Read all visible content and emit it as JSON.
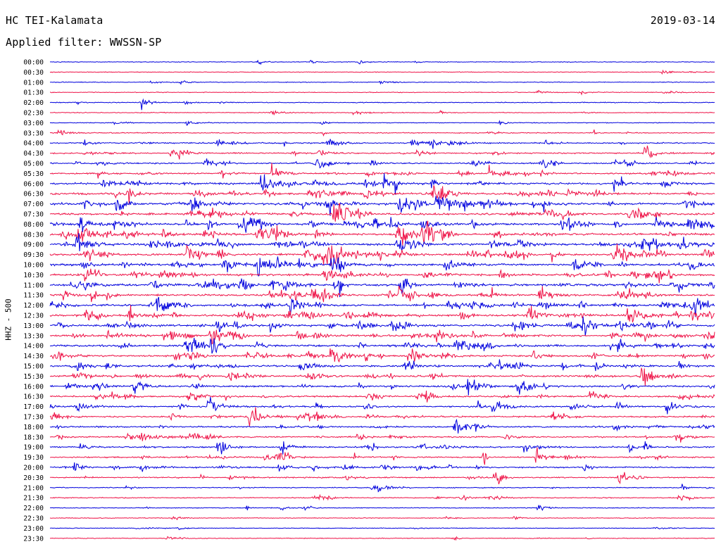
{
  "header": {
    "station": "HC TEI-Kalamata",
    "date": "2019-03-14",
    "filter_label": "Applied filter: WWSSN-SP"
  },
  "chart_data": {
    "type": "line",
    "subtype": "helicorder (drum seismogram)",
    "ylabel": "HHZ - 500",
    "trace_colors": [
      "#0000dd",
      "#ee1146"
    ],
    "row_interval_minutes": 30,
    "rows": [
      {
        "label": "00:00",
        "activity": 0.05
      },
      {
        "label": "00:30",
        "activity": 0.05
      },
      {
        "label": "01:00",
        "activity": 0.05
      },
      {
        "label": "01:30",
        "activity": 0.08
      },
      {
        "label": "02:00",
        "activity": 0.15
      },
      {
        "label": "02:30",
        "activity": 0.12
      },
      {
        "label": "03:00",
        "activity": 0.12
      },
      {
        "label": "03:30",
        "activity": 0.2
      },
      {
        "label": "04:00",
        "activity": 0.4
      },
      {
        "label": "04:30",
        "activity": 0.45
      },
      {
        "label": "05:00",
        "activity": 0.45
      },
      {
        "label": "05:30",
        "activity": 0.55
      },
      {
        "label": "06:00",
        "activity": 0.75
      },
      {
        "label": "06:30",
        "activity": 0.85
      },
      {
        "label": "07:00",
        "activity": 0.9
      },
      {
        "label": "07:30",
        "activity": 0.85
      },
      {
        "label": "08:00",
        "activity": 0.9
      },
      {
        "label": "08:30",
        "activity": 0.9
      },
      {
        "label": "09:00",
        "activity": 0.95
      },
      {
        "label": "09:30",
        "activity": 0.95
      },
      {
        "label": "10:00",
        "activity": 0.9
      },
      {
        "label": "10:30",
        "activity": 0.85
      },
      {
        "label": "11:00",
        "activity": 0.9
      },
      {
        "label": "11:30",
        "activity": 0.85
      },
      {
        "label": "12:00",
        "activity": 0.9
      },
      {
        "label": "12:30",
        "activity": 0.85
      },
      {
        "label": "13:00",
        "activity": 0.85
      },
      {
        "label": "13:30",
        "activity": 0.8
      },
      {
        "label": "14:00",
        "activity": 0.8
      },
      {
        "label": "14:30",
        "activity": 0.75
      },
      {
        "label": "15:00",
        "activity": 0.75
      },
      {
        "label": "15:30",
        "activity": 0.7
      },
      {
        "label": "16:00",
        "activity": 0.7
      },
      {
        "label": "16:30",
        "activity": 0.6
      },
      {
        "label": "17:00",
        "activity": 0.6
      },
      {
        "label": "17:30",
        "activity": 0.55
      },
      {
        "label": "18:00",
        "activity": 0.55
      },
      {
        "label": "18:30",
        "activity": 0.5
      },
      {
        "label": "19:00",
        "activity": 0.5
      },
      {
        "label": "19:30",
        "activity": 0.45
      },
      {
        "label": "20:00",
        "activity": 0.45
      },
      {
        "label": "20:30",
        "activity": 0.4
      },
      {
        "label": "21:00",
        "activity": 0.2
      },
      {
        "label": "21:30",
        "activity": 0.2
      },
      {
        "label": "22:00",
        "activity": 0.1
      },
      {
        "label": "22:30",
        "activity": 0.05
      },
      {
        "label": "23:00",
        "activity": 0.05
      },
      {
        "label": "23:30",
        "activity": 0.1
      }
    ]
  }
}
